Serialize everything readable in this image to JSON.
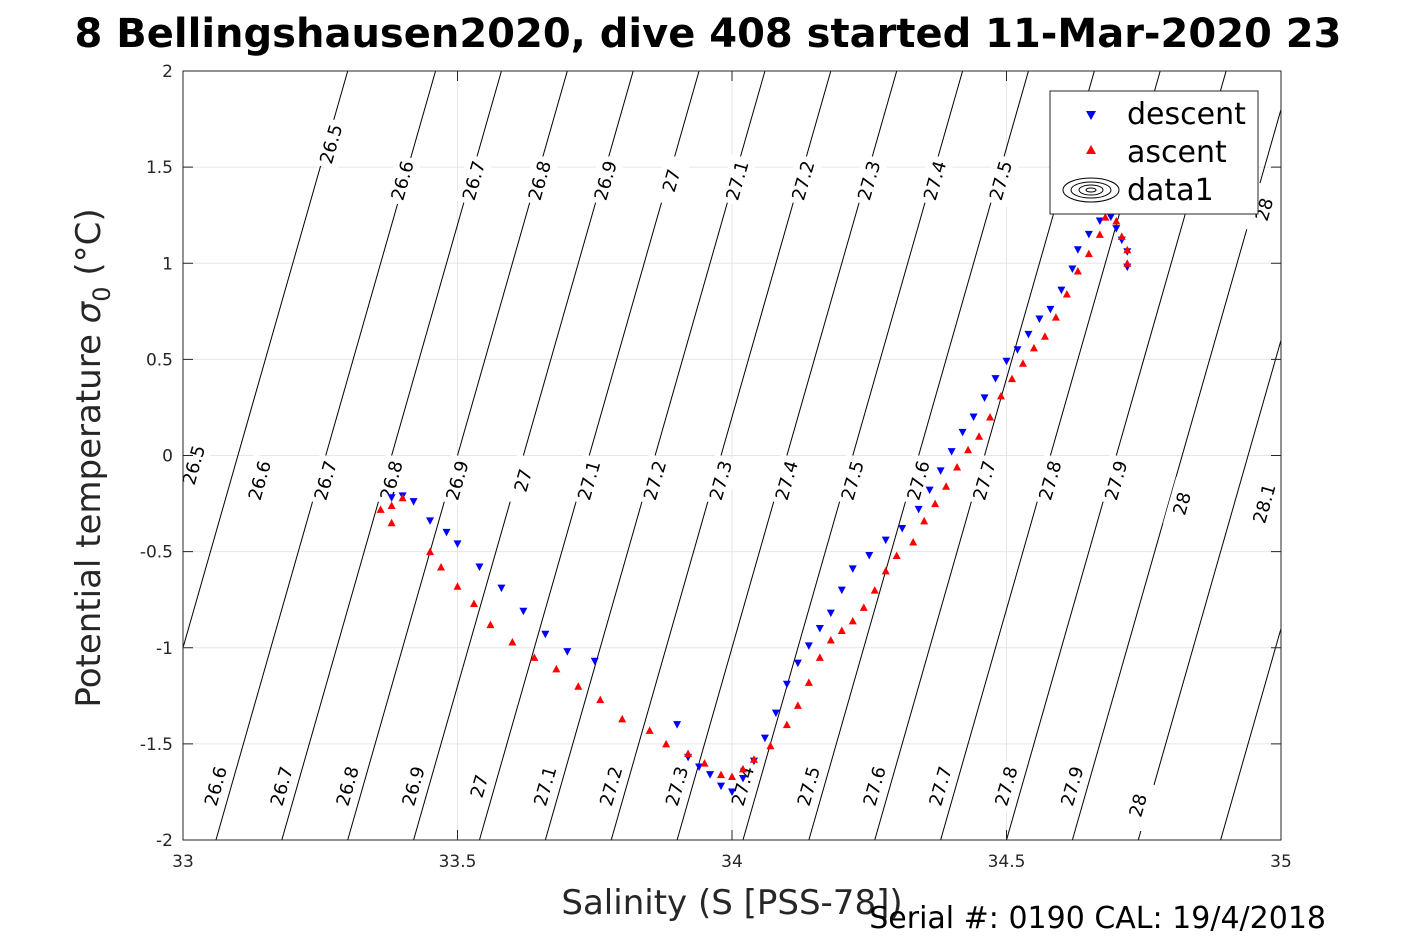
{
  "chart_data": {
    "type": "scatter",
    "title": "8 Bellingshausen2020, dive 408 started 11-Mar-2020 23",
    "xlabel": "Salinity (S [PSS-78])",
    "ylabel_main": "Potential temperature ",
    "ylabel_sym": "σ",
    "ylabel_sub": "0",
    "ylabel_unit": " (°C)",
    "xlim": [
      33,
      35
    ],
    "ylim": [
      -2,
      2
    ],
    "xticks": [
      33,
      33.5,
      34,
      34.5,
      35
    ],
    "xtick_labels": [
      "33",
      "33.5",
      "34",
      "34.5",
      "35"
    ],
    "yticks": [
      -2,
      -1.5,
      -1,
      -0.5,
      0,
      0.5,
      1,
      1.5,
      2
    ],
    "ytick_labels": [
      "-2",
      "-1.5",
      "-1",
      "-0.5",
      "0",
      "0.5",
      "1",
      "1.5",
      "2"
    ],
    "grid": true,
    "legend_position": "top-right",
    "footer": "Serial #: 0190  CAL: 19/4/2018",
    "series": [
      {
        "name": "descent",
        "marker": "triangle-down",
        "color": "#0000ff",
        "points": [
          [
            33.38,
            -0.22
          ],
          [
            33.4,
            -0.21
          ],
          [
            33.42,
            -0.24
          ],
          [
            33.45,
            -0.34
          ],
          [
            33.48,
            -0.4
          ],
          [
            33.5,
            -0.46
          ],
          [
            33.54,
            -0.58
          ],
          [
            33.58,
            -0.69
          ],
          [
            33.62,
            -0.81
          ],
          [
            33.66,
            -0.93
          ],
          [
            33.7,
            -1.02
          ],
          [
            33.75,
            -1.07
          ],
          [
            33.9,
            -1.4
          ],
          [
            33.92,
            -1.57
          ],
          [
            33.94,
            -1.62
          ],
          [
            33.96,
            -1.66
          ],
          [
            33.98,
            -1.72
          ],
          [
            34.0,
            -1.75
          ],
          [
            34.02,
            -1.68
          ],
          [
            34.04,
            -1.59
          ],
          [
            34.06,
            -1.47
          ],
          [
            34.08,
            -1.34
          ],
          [
            34.1,
            -1.19
          ],
          [
            34.12,
            -1.08
          ],
          [
            34.14,
            -0.99
          ],
          [
            34.16,
            -0.9
          ],
          [
            34.18,
            -0.82
          ],
          [
            34.2,
            -0.7
          ],
          [
            34.22,
            -0.59
          ],
          [
            34.25,
            -0.52
          ],
          [
            34.28,
            -0.44
          ],
          [
            34.31,
            -0.38
          ],
          [
            34.34,
            -0.28
          ],
          [
            34.36,
            -0.18
          ],
          [
            34.38,
            -0.08
          ],
          [
            34.4,
            0.02
          ],
          [
            34.42,
            0.12
          ],
          [
            34.44,
            0.2
          ],
          [
            34.46,
            0.3
          ],
          [
            34.48,
            0.4
          ],
          [
            34.5,
            0.49
          ],
          [
            34.52,
            0.55
          ],
          [
            34.54,
            0.63
          ],
          [
            34.56,
            0.71
          ],
          [
            34.58,
            0.76
          ],
          [
            34.6,
            0.86
          ],
          [
            34.62,
            0.97
          ],
          [
            34.63,
            1.07
          ],
          [
            34.65,
            1.15
          ],
          [
            34.67,
            1.22
          ],
          [
            34.69,
            1.24
          ],
          [
            34.7,
            1.18
          ],
          [
            34.71,
            1.12
          ],
          [
            34.72,
            1.06
          ],
          [
            34.72,
            0.98
          ]
        ]
      },
      {
        "name": "ascent",
        "marker": "triangle-up",
        "color": "#ff0000",
        "points": [
          [
            33.36,
            -0.28
          ],
          [
            33.38,
            -0.26
          ],
          [
            33.4,
            -0.22
          ],
          [
            33.38,
            -0.35
          ],
          [
            33.45,
            -0.5
          ],
          [
            33.47,
            -0.58
          ],
          [
            33.5,
            -0.68
          ],
          [
            33.53,
            -0.77
          ],
          [
            33.56,
            -0.88
          ],
          [
            33.6,
            -0.97
          ],
          [
            33.64,
            -1.05
          ],
          [
            33.68,
            -1.11
          ],
          [
            33.72,
            -1.2
          ],
          [
            33.76,
            -1.27
          ],
          [
            33.8,
            -1.37
          ],
          [
            33.85,
            -1.43
          ],
          [
            33.88,
            -1.5
          ],
          [
            33.92,
            -1.55
          ],
          [
            33.95,
            -1.6
          ],
          [
            33.98,
            -1.66
          ],
          [
            34.0,
            -1.67
          ],
          [
            34.02,
            -1.63
          ],
          [
            34.04,
            -1.58
          ],
          [
            34.07,
            -1.51
          ],
          [
            34.1,
            -1.4
          ],
          [
            34.12,
            -1.3
          ],
          [
            34.14,
            -1.18
          ],
          [
            34.16,
            -1.05
          ],
          [
            34.18,
            -0.96
          ],
          [
            34.2,
            -0.91
          ],
          [
            34.22,
            -0.86
          ],
          [
            34.24,
            -0.79
          ],
          [
            34.26,
            -0.7
          ],
          [
            34.28,
            -0.6
          ],
          [
            34.3,
            -0.52
          ],
          [
            34.33,
            -0.45
          ],
          [
            34.35,
            -0.34
          ],
          [
            34.37,
            -0.25
          ],
          [
            34.39,
            -0.16
          ],
          [
            34.41,
            -0.06
          ],
          [
            34.43,
            0.03
          ],
          [
            34.45,
            0.1
          ],
          [
            34.47,
            0.2
          ],
          [
            34.49,
            0.31
          ],
          [
            34.51,
            0.4
          ],
          [
            34.53,
            0.48
          ],
          [
            34.55,
            0.56
          ],
          [
            34.57,
            0.62
          ],
          [
            34.59,
            0.72
          ],
          [
            34.61,
            0.84
          ],
          [
            34.63,
            0.96
          ],
          [
            34.65,
            1.05
          ],
          [
            34.67,
            1.15
          ],
          [
            34.68,
            1.24
          ],
          [
            34.7,
            1.22
          ],
          [
            34.71,
            1.14
          ],
          [
            34.72,
            1.07
          ],
          [
            34.72,
            1.0
          ]
        ]
      },
      {
        "name": "data1",
        "marker": "contour",
        "color": "#000000",
        "points": []
      }
    ],
    "density_contours": [
      {
        "value": 26.5,
        "x_at_ymin": 32.9,
        "x_at_ymax": 33.3,
        "labels": [
          [
            33.27,
            1.62
          ],
          [
            33.02,
            -0.05
          ]
        ]
      },
      {
        "value": 26.6,
        "x_at_ymin": 33.06,
        "x_at_ymax": 33.46,
        "labels": [
          [
            33.4,
            1.43
          ],
          [
            33.14,
            -0.13
          ],
          [
            33.06,
            -1.72
          ]
        ]
      },
      {
        "value": 26.7,
        "x_at_ymin": 33.18,
        "x_at_ymax": 33.58,
        "labels": [
          [
            33.53,
            1.43
          ],
          [
            33.26,
            -0.13
          ],
          [
            33.18,
            -1.72
          ]
        ]
      },
      {
        "value": 26.8,
        "x_at_ymin": 33.3,
        "x_at_ymax": 33.7,
        "labels": [
          [
            33.65,
            1.43
          ],
          [
            33.38,
            -0.13
          ],
          [
            33.3,
            -1.72
          ]
        ]
      },
      {
        "value": 26.9,
        "x_at_ymin": 33.42,
        "x_at_ymax": 33.82,
        "labels": [
          [
            33.77,
            1.43
          ],
          [
            33.5,
            -0.13
          ],
          [
            33.42,
            -1.72
          ]
        ]
      },
      {
        "value": 27,
        "x_at_ymin": 33.54,
        "x_at_ymax": 33.94,
        "labels": [
          [
            33.89,
            1.43
          ],
          [
            33.62,
            -0.13
          ],
          [
            33.54,
            -1.72
          ]
        ]
      },
      {
        "value": 27.1,
        "x_at_ymin": 33.66,
        "x_at_ymax": 34.06,
        "labels": [
          [
            34.01,
            1.43
          ],
          [
            33.74,
            -0.13
          ],
          [
            33.66,
            -1.72
          ]
        ]
      },
      {
        "value": 27.2,
        "x_at_ymin": 33.78,
        "x_at_ymax": 34.18,
        "labels": [
          [
            34.13,
            1.43
          ],
          [
            33.86,
            -0.13
          ],
          [
            33.78,
            -1.72
          ]
        ]
      },
      {
        "value": 27.3,
        "x_at_ymin": 33.9,
        "x_at_ymax": 34.3,
        "labels": [
          [
            34.25,
            1.43
          ],
          [
            33.98,
            -0.13
          ],
          [
            33.9,
            -1.72
          ]
        ]
      },
      {
        "value": 27.4,
        "x_at_ymin": 34.02,
        "x_at_ymax": 34.42,
        "labels": [
          [
            34.37,
            1.43
          ],
          [
            34.1,
            -0.13
          ],
          [
            34.02,
            -1.72
          ]
        ]
      },
      {
        "value": 27.5,
        "x_at_ymin": 34.14,
        "x_at_ymax": 34.54,
        "labels": [
          [
            34.49,
            1.43
          ],
          [
            34.22,
            -0.13
          ],
          [
            34.14,
            -1.72
          ]
        ]
      },
      {
        "value": 27.6,
        "x_at_ymin": 34.26,
        "x_at_ymax": 34.66,
        "labels": [
          [
            34.61,
            1.43
          ],
          [
            34.34,
            -0.13
          ],
          [
            34.26,
            -1.72
          ]
        ]
      },
      {
        "value": 27.7,
        "x_at_ymin": 34.38,
        "x_at_ymax": 34.78,
        "labels": [
          [
            34.46,
            -0.13
          ],
          [
            34.38,
            -1.72
          ]
        ]
      },
      {
        "value": 27.8,
        "x_at_ymin": 34.5,
        "x_at_ymax": 34.9,
        "labels": [
          [
            34.58,
            -0.13
          ],
          [
            34.5,
            -1.72
          ]
        ]
      },
      {
        "value": 27.9,
        "x_at_ymin": 34.62,
        "x_at_ymax": 35.02,
        "labels": [
          [
            34.7,
            -0.13
          ],
          [
            34.62,
            -1.72
          ]
        ]
      },
      {
        "value": 28,
        "x_at_ymin": 34.74,
        "x_at_ymax": 35.14,
        "labels": [
          [
            34.97,
            1.28
          ],
          [
            34.82,
            -0.25
          ],
          [
            34.74,
            -1.82
          ]
        ]
      },
      {
        "value": 28.1,
        "x_at_ymin": 34.89,
        "x_at_ymax": 35.29,
        "labels": [
          [
            34.97,
            -0.25
          ]
        ]
      }
    ]
  }
}
